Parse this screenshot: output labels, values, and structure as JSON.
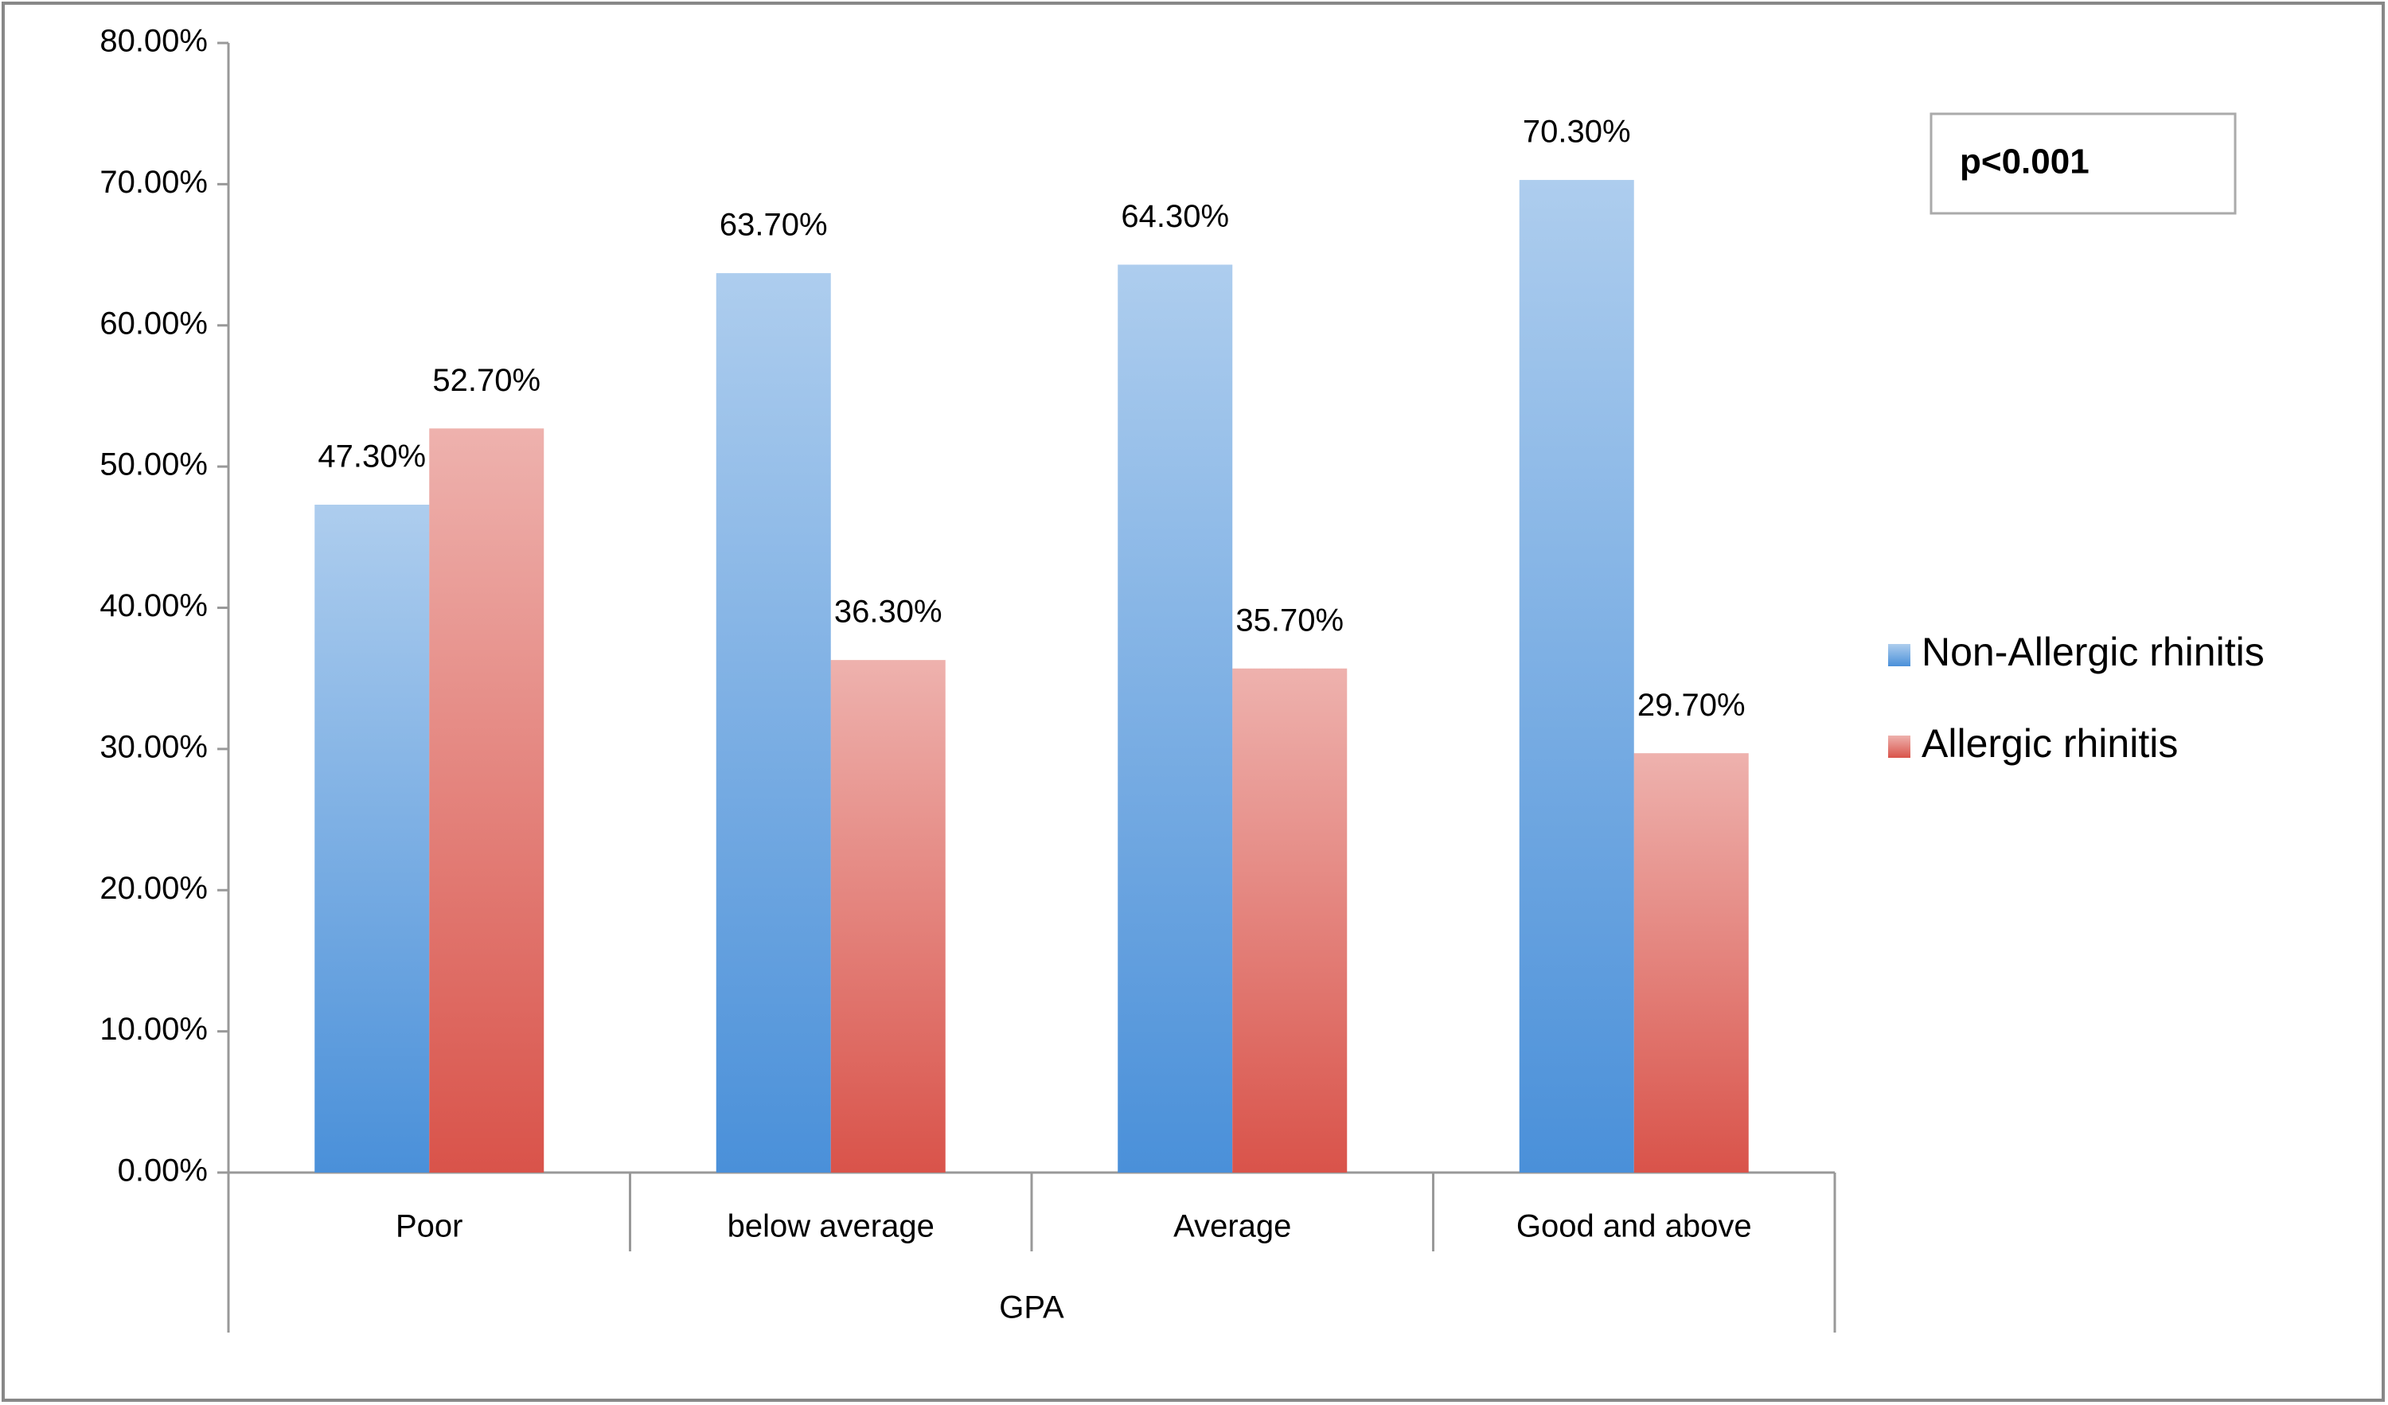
{
  "chart_data": {
    "type": "bar",
    "categories": [
      "Poor",
      "below average",
      "Average",
      "Good and above"
    ],
    "x_label": "GPA",
    "annotation": "p<0.001",
    "series": [
      {
        "name": "Non-Allergic rhinitis",
        "color": "#4a90d9",
        "values": [
          47.3,
          63.7,
          64.3,
          70.3
        ],
        "value_labels": [
          "47.30%",
          "63.70%",
          "64.30%",
          "70.30%"
        ]
      },
      {
        "name": "Allergic rhinitis",
        "color": "#d9534a",
        "values": [
          52.7,
          36.3,
          35.7,
          29.7
        ],
        "value_labels": [
          "52.70%",
          "36.30%",
          "35.70%",
          "29.70%"
        ]
      }
    ],
    "ylim": [
      0,
      80
    ],
    "yticks": [
      {
        "value": 0,
        "label": "0.00%"
      },
      {
        "value": 10,
        "label": "10.00%"
      },
      {
        "value": 20,
        "label": "20.00%"
      },
      {
        "value": 30,
        "label": "30.00%"
      },
      {
        "value": 40,
        "label": "40.00%"
      },
      {
        "value": 50,
        "label": "50.00%"
      },
      {
        "value": 60,
        "label": "60.00%"
      },
      {
        "value": 70,
        "label": "70.00%"
      },
      {
        "value": 80,
        "label": "80.00%"
      }
    ],
    "legend": "right"
  }
}
